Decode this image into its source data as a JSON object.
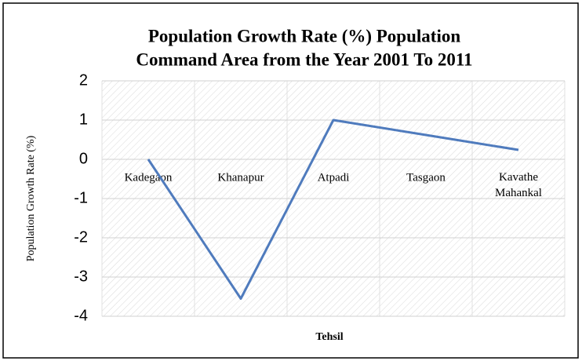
{
  "chart_data": {
    "type": "line",
    "title": [
      "Population Growth Rate (%) Population",
      "Command Area from the Year 2001 To 2011"
    ],
    "x_label": "Tehsil",
    "y_label": "Population Growth Rate (%)",
    "categories": [
      "Kadegaon",
      "Khanapur",
      "Atpadi",
      "Tasgaon",
      "Kavathe Mahankal"
    ],
    "series": [
      {
        "name": "Population Growth Rate (%)",
        "color": "#4f7bbd",
        "values": [
          0,
          -3.55,
          1,
          0.62,
          0.24
        ]
      }
    ],
    "ylim": [
      -4,
      2
    ],
    "yticks": [
      -4,
      -3,
      -2,
      -1,
      0,
      1,
      2
    ],
    "grid": true
  }
}
